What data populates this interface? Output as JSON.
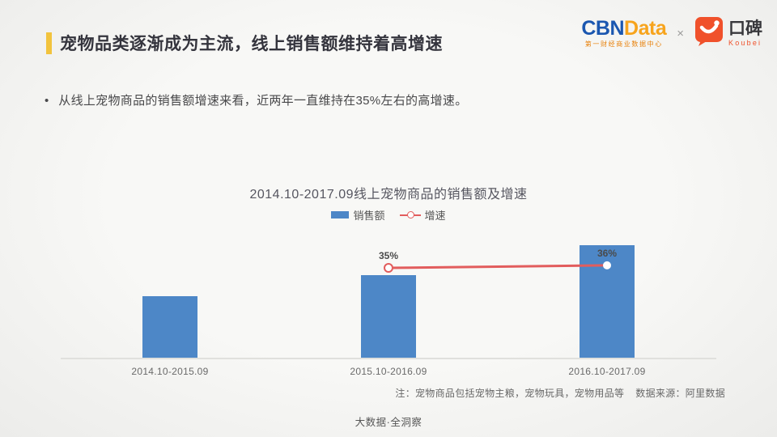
{
  "header": {
    "title": "宠物品类逐渐成为主流，线上销售额维持着高增速",
    "accent_color": "#f2c33d",
    "title_color": "#34343d"
  },
  "logos": {
    "cbn": {
      "part1": "CBN",
      "part2": "Data",
      "tagline": "第一财经商业数据中心"
    },
    "separator": "×",
    "koubei": {
      "name": "口碑",
      "latin": "Koubei",
      "brand_color": "#f0512b"
    }
  },
  "bullet": {
    "marker": "•",
    "text": "从线上宠物商品的销售额增速来看，近两年一直维持在35%左右的高增速。"
  },
  "chart_data": {
    "type": "bar+line",
    "title": "2014.10-2017.09线上宠物商品的销售额及增速",
    "categories": [
      "2014.10-2015.09",
      "2015.10-2016.09",
      "2016.10-2017.09"
    ],
    "series": [
      {
        "name": "销售额",
        "type": "bar",
        "color": "#4d87c7",
        "values_relative": [
          1.0,
          1.35,
          1.84
        ]
      },
      {
        "name": "增速",
        "type": "line",
        "color": "#e25d5d",
        "values_pct": [
          null,
          35,
          36
        ],
        "point_labels": [
          "",
          "35%",
          "36%"
        ],
        "marker_styles": [
          "none",
          "open",
          "filled"
        ]
      }
    ],
    "axes": {
      "y_axis_visible": false,
      "x_axis_line": true
    },
    "legend_position": "top-center"
  },
  "note": {
    "text": "注：宠物商品包括宠物主粮，宠物玩具，宠物用品等",
    "source": "数据来源：阿里数据"
  },
  "footer": {
    "text": "大数据·全洞察"
  }
}
